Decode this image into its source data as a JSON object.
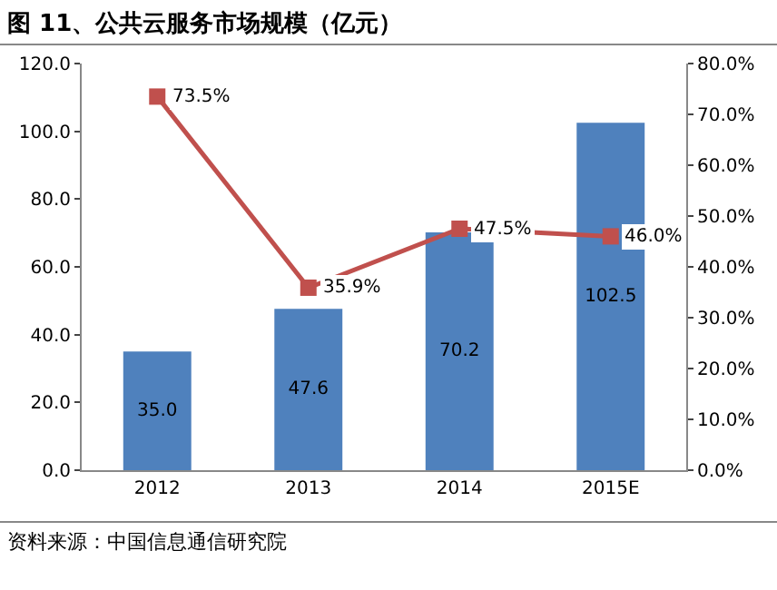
{
  "chart_data": {
    "type": "bar",
    "title": "图 11、公共云服务市场规模（亿元）",
    "categories": [
      "2012",
      "2013",
      "2014",
      "2015E"
    ],
    "series": [
      {
        "color": "#4f81bd",
        "values": [
          35.0,
          47.6,
          70.2,
          102.5
        ],
        "value_labels": [
          "35.0",
          "47.6",
          "70.2",
          "102.5"
        ]
      },
      {
        "type": "line",
        "axis": "y2",
        "color": "#c0504d",
        "marker": "square",
        "values": [
          73.5,
          35.9,
          47.5,
          46.0
        ],
        "value_labels": [
          "73.5%",
          "35.9%",
          "47.5%",
          "46.0%"
        ]
      }
    ],
    "ylim": [
      0,
      120
    ],
    "yticks": [
      {
        "value": 0,
        "label": "0.0"
      },
      {
        "value": 20,
        "label": "20.0"
      },
      {
        "value": 40,
        "label": "40.0"
      },
      {
        "value": 60,
        "label": "60.0"
      },
      {
        "value": 80,
        "label": "80.0"
      },
      {
        "value": 100,
        "label": "100.0"
      },
      {
        "value": 120,
        "label": "120.0"
      }
    ],
    "y2lim": [
      0,
      80
    ],
    "y2ticks": [
      {
        "value": 0,
        "label": "0.0%"
      },
      {
        "value": 10,
        "label": "10.0%"
      },
      {
        "value": 20,
        "label": "20.0%"
      },
      {
        "value": 30,
        "label": "30.0%"
      },
      {
        "value": 40,
        "label": "40.0%"
      },
      {
        "value": 50,
        "label": "50.0%"
      },
      {
        "value": 60,
        "label": "60.0%"
      },
      {
        "value": 70,
        "label": "70.0%"
      },
      {
        "value": 80,
        "label": "80.0%"
      }
    ],
    "grid": false,
    "annotations": [
      "资料来源：中国信息通信研究院"
    ]
  }
}
